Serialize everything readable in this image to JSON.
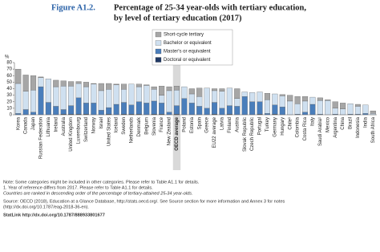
{
  "chart_data": {
    "type": "stacked_bar",
    "figure_label": "Figure A1.2.",
    "title": [
      "Percentage of 25-34 year-olds with tertiary education,",
      "by level of tertiary education (2017)"
    ],
    "y_unit": "%",
    "categories": [
      "Korea",
      "Canada",
      "Japan",
      "Russian Federation",
      "Lithuania",
      "Ireland",
      "Australia",
      "United Kingdom",
      "Luxembourg",
      "Switzerland",
      "Norway",
      "Israel",
      "United States",
      "Iceland",
      "Sweden",
      "Netherlands",
      "Denmark",
      "Belgium",
      "Slovenia",
      "France",
      "New Zealand",
      "OECD average",
      "Poland",
      "Estonia",
      "Spain",
      "Greece",
      "EU22 average",
      "Latvia",
      "Finland",
      "Austria",
      "Slovak Republic",
      "Czech Republic",
      "Portugal",
      "Turkey",
      "Germany",
      "Hungary",
      "Chile¹",
      "Colombia",
      "Costa Rica",
      "Italy",
      "Saudi Arabia¹",
      "Mexico",
      "Argentina",
      "China",
      "Brazil",
      "Indonesia",
      "India",
      "South Africa"
    ],
    "highlight_category": "OECD average",
    "series": [
      {
        "name": "Doctoral or equivalent",
        "color": "#1f3864",
        "values": [
          0,
          0,
          0,
          0,
          0,
          0,
          1,
          1,
          1,
          1,
          0,
          0,
          1,
          0,
          1,
          1,
          1,
          0,
          1,
          1,
          0,
          1,
          0,
          0,
          0,
          0,
          1,
          0,
          1,
          0,
          0,
          0,
          1,
          0,
          1,
          0,
          0,
          0,
          0,
          0,
          0,
          0,
          0,
          0,
          0,
          0,
          0,
          0
        ]
      },
      {
        "name": "Master's or equivalent",
        "color": "#4a7ebb",
        "values": [
          2,
          8,
          4,
          43,
          19,
          13,
          7,
          13,
          25,
          17,
          18,
          7,
          10,
          16,
          18,
          14,
          19,
          18,
          20,
          17,
          4,
          13,
          25,
          18,
          13,
          10,
          18,
          10,
          13,
          13,
          28,
          20,
          19,
          2,
          14,
          12,
          0,
          1,
          4,
          16,
          1,
          0,
          1,
          0,
          1,
          1,
          2,
          0
        ]
      },
      {
        "name": "Bachelor or equivalent",
        "color": "#cfe0f0",
        "values": [
          46,
          28,
          34,
          14,
          36,
          30,
          36,
          30,
          22,
          25,
          29,
          30,
          28,
          30,
          20,
          32,
          23,
          27,
          18,
          12,
          33,
          24,
          18,
          14,
          15,
          31,
          18,
          26,
          27,
          12,
          7,
          14,
          15,
          21,
          17,
          17,
          21,
          16,
          17,
          11,
          21,
          22,
          9,
          9,
          16,
          12,
          13,
          2
        ]
      },
      {
        "name": "Short-cycle tertiary",
        "color": "#a6a6a6",
        "values": [
          22,
          25,
          22,
          1,
          0,
          10,
          8,
          7,
          3,
          7,
          1,
          11,
          9,
          1,
          8,
          0,
          4,
          1,
          4,
          14,
          6,
          6,
          0,
          8,
          13,
          0,
          3,
          4,
          0,
          15,
          0,
          0,
          0,
          10,
          0,
          2,
          9,
          11,
          7,
          0,
          4,
          1,
          10,
          9,
          0,
          3,
          0,
          4
        ]
      }
    ],
    "ylim": [
      0,
      80
    ],
    "yticks": [
      0,
      10,
      20,
      30,
      40,
      50,
      60,
      70,
      80
    ],
    "notes": [
      "Note: Some categories might be included in other categories. Please refer to Table A1.1 for details.",
      "1. Year of reference differs from 2017. Please refer to Table A1.1 for details.",
      "Countries are ranked in descending order of the percentage of tertiary-attained 25-34 year-olds.",
      "Source: OECD (2018), Education at a Glance Database, http://stats.oecd.org/. See Source section for more information and Annex 3 for notes",
      "(http://dx.doi.org/10.1787/eag-2018-36-en).",
      "StatLink http://dx.doi.org/10.1787/888933801677"
    ]
  }
}
